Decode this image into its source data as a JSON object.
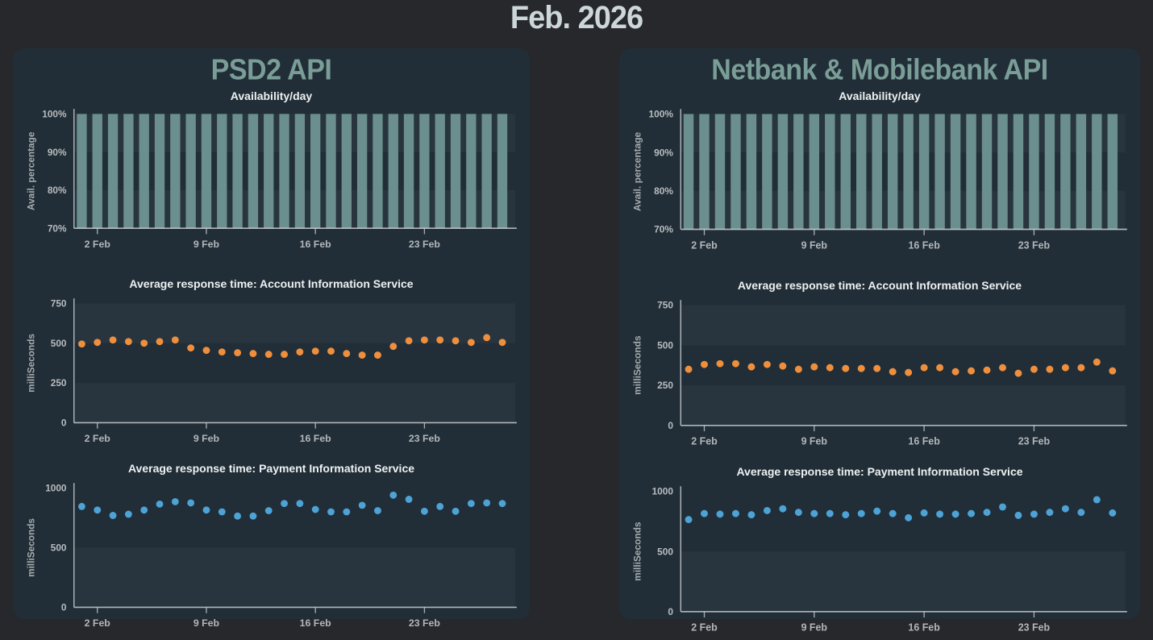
{
  "page_title": "Feb. 2026",
  "colors": {
    "page_background": "#27282b",
    "panel_background": "#212e37",
    "availability_bar": "#6b8e8e",
    "ais_dot": "#ef8f3d",
    "pis_dot": "#4da2d6",
    "axis_line": "#c9ced1",
    "band_fill": "rgba(255,255,255,0.035)",
    "heading": "#7a9d97",
    "chart_title": "#eef1f2"
  },
  "panels": [
    {
      "title": "PSD2 API"
    },
    {
      "title": "Netbank & Mobilebank API"
    }
  ],
  "chart_data": [
    {
      "panel": "PSD2 API",
      "type": "bar",
      "title": "Availability/day",
      "ylabel": "Avail. percentage",
      "ymin": 70,
      "ymax": 100,
      "yticks": [
        {
          "v": 100,
          "label": "100%"
        },
        {
          "v": 90,
          "label": "90%"
        },
        {
          "v": 80,
          "label": "80%"
        },
        {
          "v": 70,
          "label": "70%"
        }
      ],
      "xticks": [
        {
          "day": 2,
          "label": "2 Feb"
        },
        {
          "day": 9,
          "label": "9 Feb"
        },
        {
          "day": 16,
          "label": "16 Feb"
        },
        {
          "day": 23,
          "label": "23 Feb"
        }
      ],
      "days": 28,
      "bands": [
        [
          100,
          90
        ],
        [
          80,
          70
        ]
      ],
      "values": [
        100,
        100,
        100,
        100,
        100,
        100,
        100,
        100,
        100,
        100,
        100,
        100,
        100,
        100,
        100,
        100,
        100,
        100,
        100,
        100,
        100,
        100,
        100,
        100,
        100,
        100,
        100,
        100
      ],
      "color": "#6b8e8e"
    },
    {
      "panel": "PSD2 API",
      "type": "scatter",
      "title": "Average response time: Account Information Service",
      "ylabel": "milliSeconds",
      "ymin": 0,
      "ymax": 750,
      "yticks": [
        {
          "v": 750,
          "label": "750"
        },
        {
          "v": 500,
          "label": "500"
        },
        {
          "v": 250,
          "label": "250"
        },
        {
          "v": 0,
          "label": "0"
        }
      ],
      "xticks": [
        {
          "day": 2,
          "label": "2 Feb"
        },
        {
          "day": 9,
          "label": "9 Feb"
        },
        {
          "day": 16,
          "label": "16 Feb"
        },
        {
          "day": 23,
          "label": "23 Feb"
        }
      ],
      "days": 28,
      "bands": [
        [
          750,
          500
        ],
        [
          250,
          0
        ]
      ],
      "values": [
        495,
        505,
        520,
        510,
        500,
        510,
        520,
        470,
        455,
        445,
        440,
        435,
        430,
        430,
        445,
        450,
        450,
        435,
        425,
        425,
        480,
        515,
        520,
        520,
        515,
        505,
        535,
        505
      ],
      "color": "#ef8f3d"
    },
    {
      "panel": "PSD2 API",
      "type": "scatter",
      "title": "Average response time: Payment Information Service",
      "ylabel": "milliSeconds",
      "ymin": 0,
      "ymax": 1000,
      "yticks": [
        {
          "v": 1000,
          "label": "1000"
        },
        {
          "v": 500,
          "label": "500"
        },
        {
          "v": 0,
          "label": "0"
        }
      ],
      "xticks": [
        {
          "day": 2,
          "label": "2 Feb"
        },
        {
          "day": 9,
          "label": "9 Feb"
        },
        {
          "day": 16,
          "label": "16 Feb"
        },
        {
          "day": 23,
          "label": "23 Feb"
        }
      ],
      "days": 28,
      "bands": [
        [
          500,
          0
        ]
      ],
      "values": [
        845,
        815,
        770,
        780,
        815,
        865,
        885,
        875,
        815,
        800,
        765,
        765,
        810,
        870,
        870,
        820,
        800,
        800,
        855,
        810,
        940,
        905,
        805,
        845,
        805,
        870,
        875,
        870
      ],
      "color": "#4da2d6"
    },
    {
      "panel": "Netbank & Mobilebank API",
      "type": "bar",
      "title": "Availability/day",
      "ylabel": "Avail. percentage",
      "ymin": 70,
      "ymax": 100,
      "yticks": [
        {
          "v": 100,
          "label": "100%"
        },
        {
          "v": 90,
          "label": "90%"
        },
        {
          "v": 80,
          "label": "80%"
        },
        {
          "v": 70,
          "label": "70%"
        }
      ],
      "xticks": [
        {
          "day": 2,
          "label": "2 Feb"
        },
        {
          "day": 9,
          "label": "9 Feb"
        },
        {
          "day": 16,
          "label": "16 Feb"
        },
        {
          "day": 23,
          "label": "23 Feb"
        }
      ],
      "days": 28,
      "bands": [
        [
          100,
          90
        ],
        [
          80,
          70
        ]
      ],
      "values": [
        100,
        100,
        100,
        100,
        100,
        100,
        100,
        100,
        100,
        100,
        100,
        100,
        100,
        100,
        100,
        100,
        100,
        100,
        100,
        100,
        100,
        100,
        100,
        100,
        100,
        100,
        100,
        100
      ],
      "color": "#6b8e8e"
    },
    {
      "panel": "Netbank & Mobilebank API",
      "type": "scatter",
      "title": "Average response time: Account Information Service",
      "ylabel": "milliSeconds",
      "ymin": 0,
      "ymax": 750,
      "yticks": [
        {
          "v": 750,
          "label": "750"
        },
        {
          "v": 500,
          "label": "500"
        },
        {
          "v": 250,
          "label": "250"
        },
        {
          "v": 0,
          "label": "0"
        }
      ],
      "xticks": [
        {
          "day": 2,
          "label": "2 Feb"
        },
        {
          "day": 9,
          "label": "9 Feb"
        },
        {
          "day": 16,
          "label": "16 Feb"
        },
        {
          "day": 23,
          "label": "23 Feb"
        }
      ],
      "days": 28,
      "bands": [
        [
          750,
          500
        ],
        [
          250,
          0
        ]
      ],
      "values": [
        350,
        380,
        385,
        385,
        365,
        380,
        370,
        350,
        365,
        360,
        355,
        355,
        355,
        335,
        330,
        360,
        360,
        335,
        340,
        345,
        360,
        325,
        350,
        350,
        360,
        360,
        395,
        340
      ],
      "color": "#ef8f3d"
    },
    {
      "panel": "Netbank & Mobilebank API",
      "type": "scatter",
      "title": "Average response time: Payment Information Service",
      "ylabel": "milliSeconds",
      "ymin": 0,
      "ymax": 1000,
      "yticks": [
        {
          "v": 1000,
          "label": "1000"
        },
        {
          "v": 500,
          "label": "500"
        },
        {
          "v": 0,
          "label": "0"
        }
      ],
      "xticks": [
        {
          "day": 2,
          "label": "2 Feb"
        },
        {
          "day": 9,
          "label": "9 Feb"
        },
        {
          "day": 16,
          "label": "16 Feb"
        },
        {
          "day": 23,
          "label": "23 Feb"
        }
      ],
      "days": 28,
      "bands": [
        [
          500,
          0
        ]
      ],
      "values": [
        765,
        815,
        810,
        815,
        805,
        840,
        855,
        825,
        815,
        815,
        805,
        815,
        835,
        815,
        780,
        820,
        810,
        810,
        815,
        825,
        870,
        800,
        810,
        825,
        855,
        825,
        930,
        820
      ],
      "color": "#4da2d6"
    }
  ]
}
